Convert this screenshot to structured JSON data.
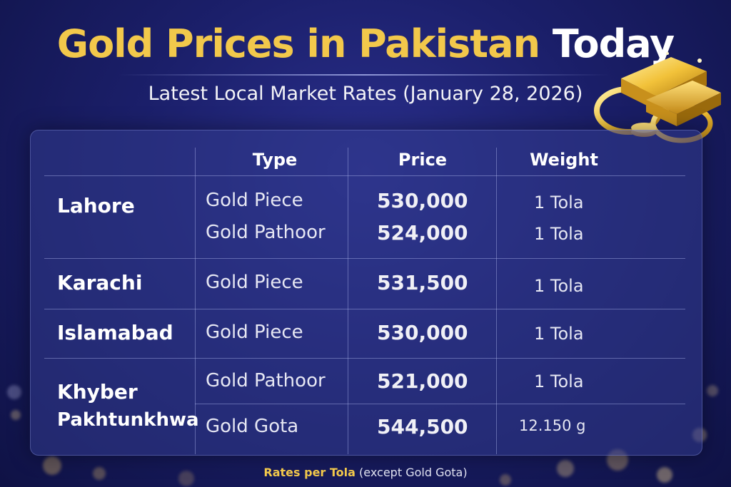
{
  "title": {
    "part_gold": "Gold Prices in Pakistan",
    "part_white": "Today"
  },
  "subtitle": "Latest Local Market Rates (January 28, 2026)",
  "table": {
    "headers": {
      "type": "Type",
      "price": "Price",
      "weight": "Weight"
    },
    "cities": {
      "lahore": "Lahore",
      "karachi": "Karachi",
      "islamabad": "Islamabad",
      "kpk_line1": "Khyber",
      "kpk_line2": "Pakhtunkhwa"
    },
    "rows": [
      {
        "type": "Gold Piece",
        "price": "530,000",
        "weight": "1 Tola"
      },
      {
        "type": "Gold Pathoor",
        "price": "524,000",
        "weight": "1 Tola"
      },
      {
        "type": "Gold Piece",
        "price": "531,500",
        "weight": "1 Tola"
      },
      {
        "type": "Gold Piece",
        "price": "530,000",
        "weight": "1 Tola"
      },
      {
        "type": "Gold Pathoor",
        "price": "521,000",
        "weight": "1 Tola"
      },
      {
        "type": "Gold Gota",
        "price": "544,500",
        "weight": "12.150 g"
      }
    ]
  },
  "footer": {
    "highlight": "Rates per Tola",
    "rest": "(except Gold Gota)"
  },
  "colors": {
    "gold": "#f2c84b",
    "bg": "#1b1f6a"
  }
}
